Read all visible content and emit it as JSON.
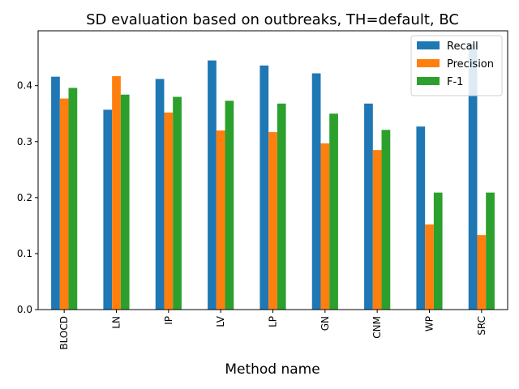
{
  "chart_data": {
    "type": "bar",
    "title": "SD evaluation based on outbreaks, TH=default, BC",
    "xlabel": "Method name",
    "ylabel": "",
    "categories": [
      "BLOCD",
      "LN",
      "IP",
      "LV",
      "LP",
      "GN",
      "CNM",
      "WP",
      "SRC"
    ],
    "series": [
      {
        "name": "Recall",
        "color": "#1f77b4",
        "values": [
          0.416,
          0.357,
          0.412,
          0.445,
          0.436,
          0.422,
          0.368,
          0.327,
          0.474
        ]
      },
      {
        "name": "Precision",
        "color": "#ff7f0e",
        "values": [
          0.377,
          0.417,
          0.352,
          0.32,
          0.317,
          0.297,
          0.285,
          0.152,
          0.133
        ]
      },
      {
        "name": "F-1",
        "color": "#2ca02c",
        "values": [
          0.396,
          0.384,
          0.38,
          0.373,
          0.368,
          0.35,
          0.321,
          0.209,
          0.209
        ]
      }
    ],
    "ylim": [
      0,
      0.498
    ],
    "yticks": [
      "0.0",
      "0.1",
      "0.2",
      "0.3",
      "0.4"
    ],
    "grid": false,
    "legend_position": "top-right"
  }
}
